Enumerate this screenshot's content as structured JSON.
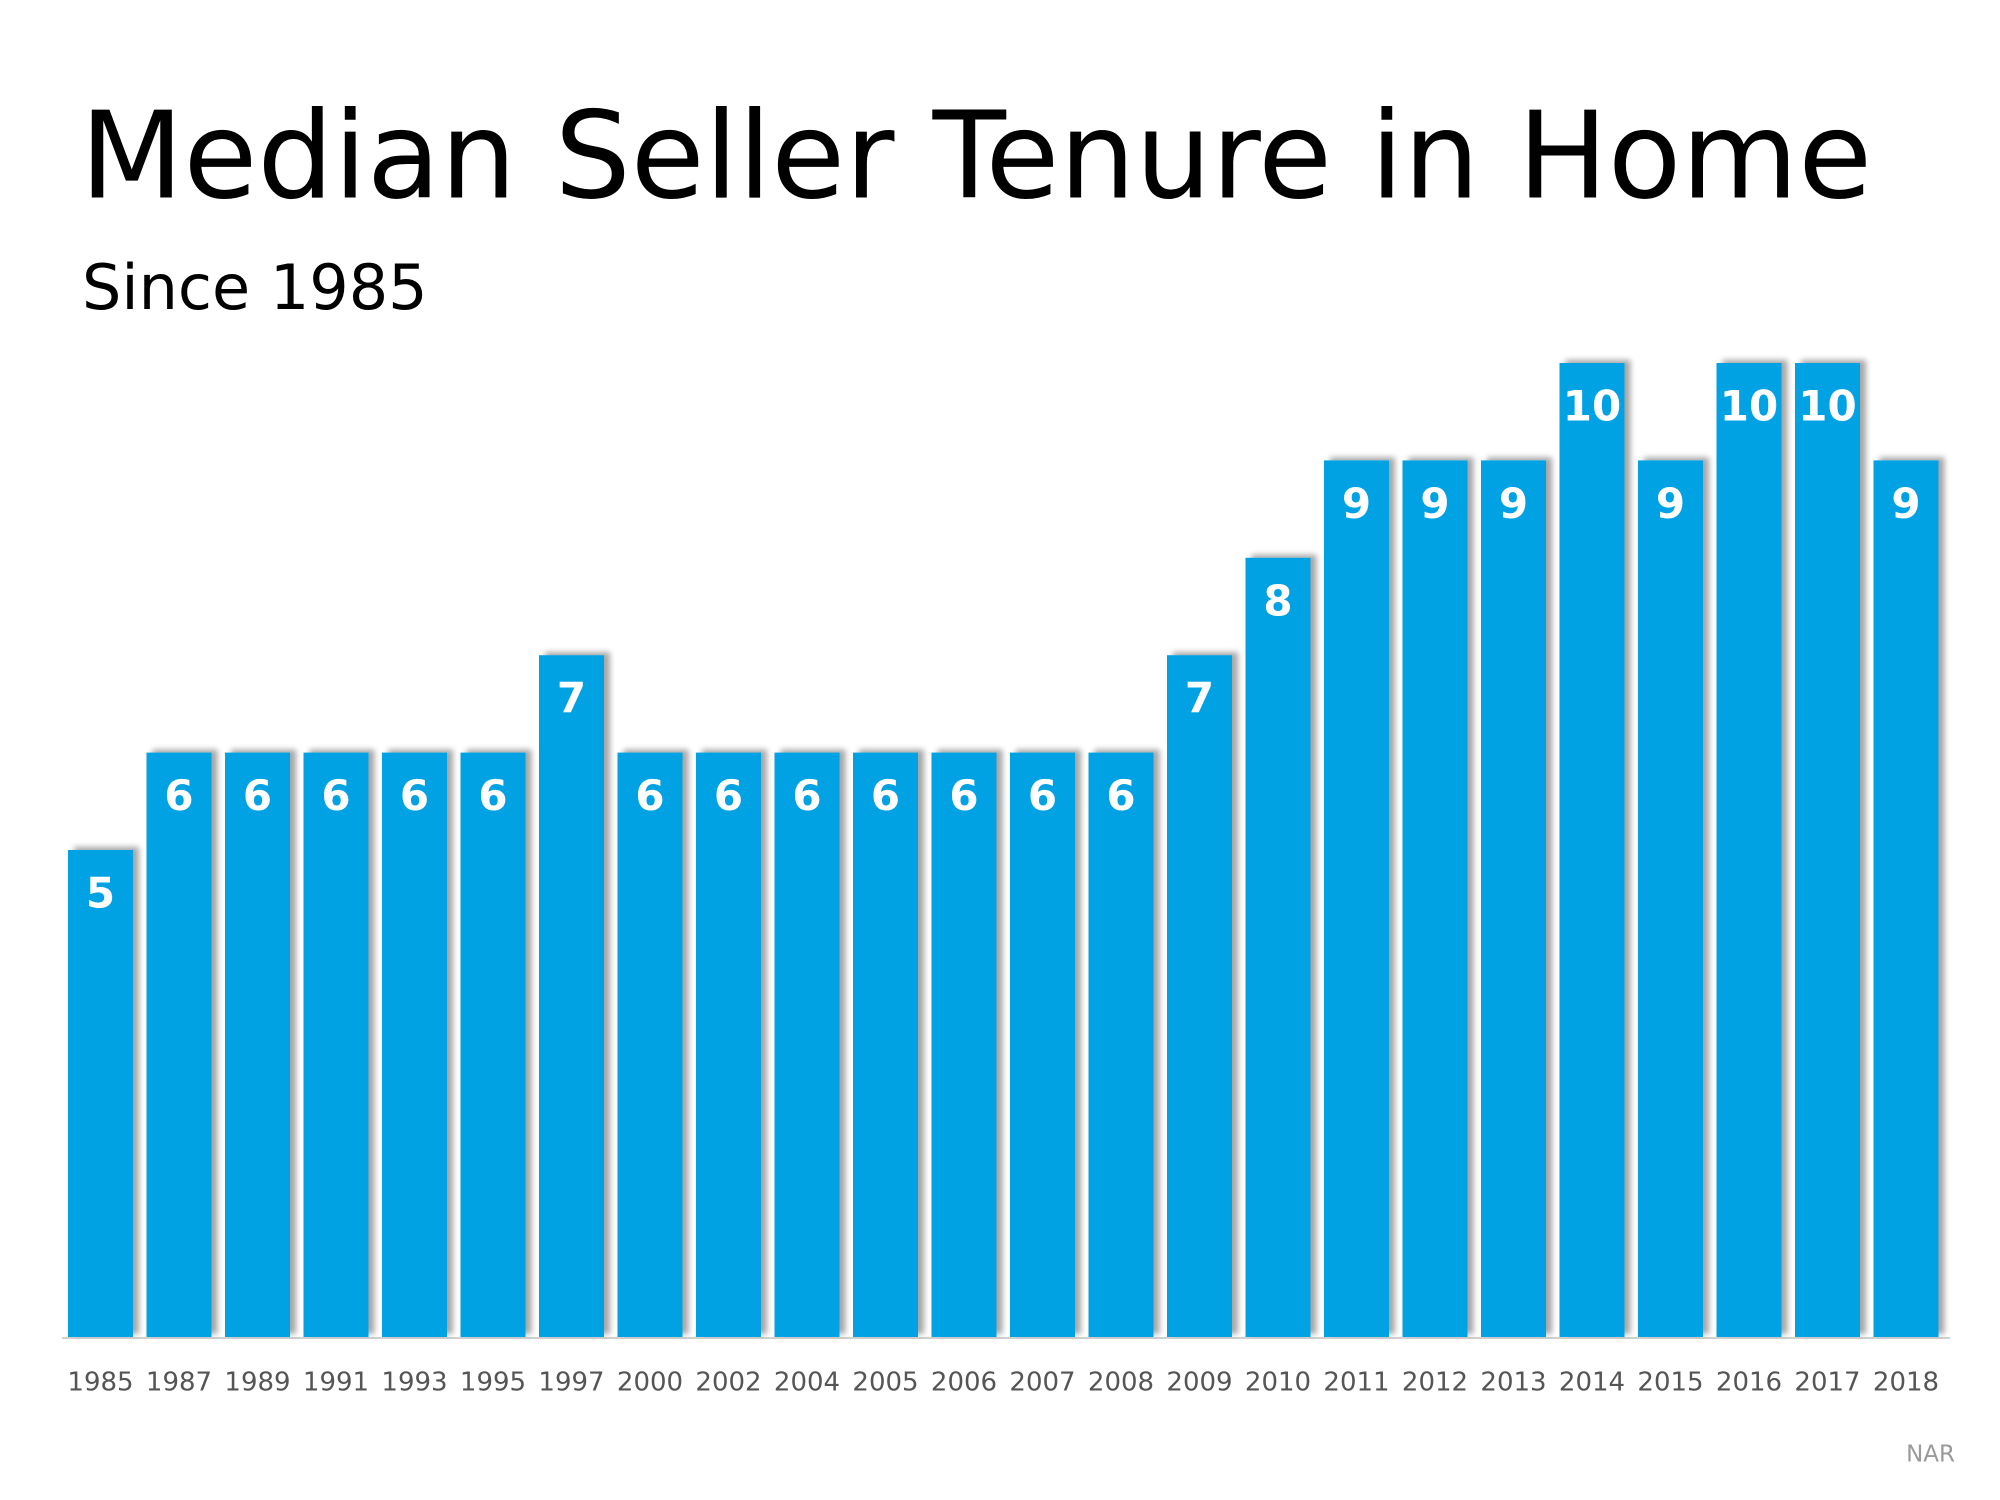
{
  "chart_data": {
    "type": "bar",
    "title": "Median Seller Tenure in Home",
    "subtitle": "Since 1985",
    "categories": [
      "1985",
      "1987",
      "1989",
      "1991",
      "1993",
      "1995",
      "1997",
      "2000",
      "2002",
      "2004",
      "2005",
      "2006",
      "2007",
      "2008",
      "2009",
      "2010",
      "2011",
      "2012",
      "2013",
      "2014",
      "2015",
      "2016",
      "2017",
      "2018"
    ],
    "values": [
      5,
      6,
      6,
      6,
      6,
      6,
      7,
      6,
      6,
      6,
      6,
      6,
      6,
      6,
      7,
      8,
      9,
      9,
      9,
      10,
      9,
      10,
      10,
      9
    ],
    "color": "#00a2e3",
    "source": "NAR"
  }
}
